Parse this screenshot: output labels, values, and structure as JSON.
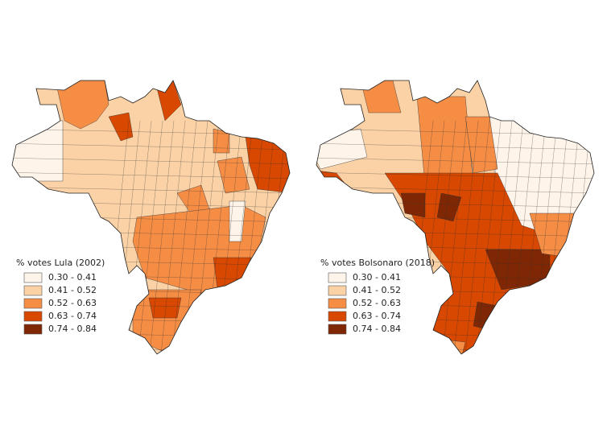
{
  "maps": [
    {
      "legend_title": "% votes Lula (2002)",
      "classes": [
        {
          "label": "0.30 - 0.41",
          "color": "#fef4ea"
        },
        {
          "label": "0.41 - 0.52",
          "color": "#fbd2a6"
        },
        {
          "label": "0.52 - 0.63",
          "color": "#f68d45"
        },
        {
          "label": "0.63 - 0.74",
          "color": "#d94801"
        },
        {
          "label": "0.74 - 0.84",
          "color": "#7f2704"
        }
      ]
    },
    {
      "legend_title": "% votes Bolsonaro (2018)",
      "classes": [
        {
          "label": "0.30 - 0.41",
          "color": "#fef4ea"
        },
        {
          "label": "0.41 - 0.52",
          "color": "#fbd2a6"
        },
        {
          "label": "0.52 - 0.63",
          "color": "#f68d45"
        },
        {
          "label": "0.63 - 0.74",
          "color": "#d94801"
        },
        {
          "label": "0.74 - 0.84",
          "color": "#7f2704"
        }
      ]
    }
  ]
}
